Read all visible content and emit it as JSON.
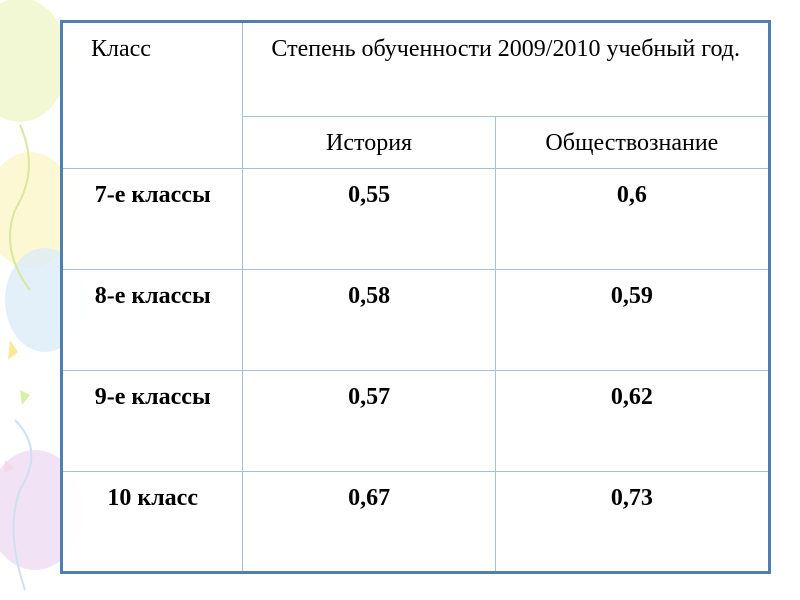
{
  "table": {
    "header": {
      "class": "Класс",
      "group": "Степень обученности  2009/2010 учебный год.",
      "subjects": [
        "История",
        "Обществознание"
      ]
    },
    "rows": [
      [
        "7-е классы",
        "0,55",
        "0,6"
      ],
      [
        "8-е классы",
        "0,58",
        "0,59"
      ],
      [
        "9-е классы",
        "0,57",
        "0,62"
      ],
      [
        "10 класс",
        "0,67",
        "0,73"
      ]
    ]
  }
}
